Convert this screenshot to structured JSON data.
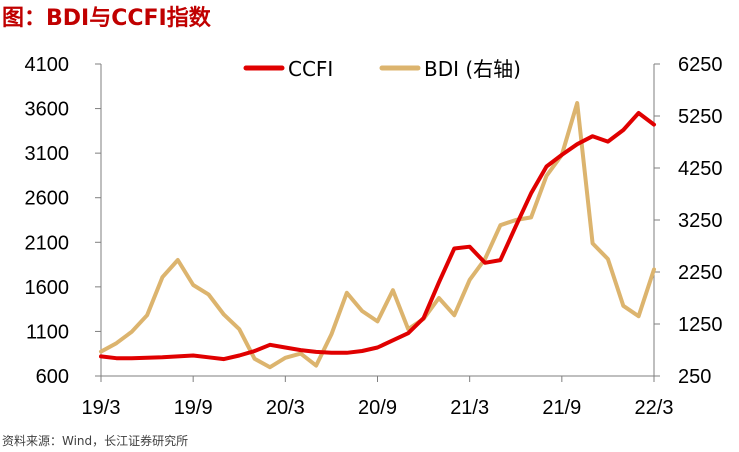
{
  "title": "图：BDI与CCFI指数",
  "source": "资料来源：Wind，长江证券研究所",
  "chart_data": {
    "type": "line",
    "x_tick_labels": [
      "19/3",
      "19/9",
      "20/3",
      "20/9",
      "21/3",
      "21/9",
      "22/3"
    ],
    "left_axis": {
      "ylim": [
        600,
        4100
      ],
      "ticks": [
        600,
        1100,
        1600,
        2100,
        2600,
        3100,
        3600,
        4100
      ]
    },
    "right_axis": {
      "ylim": [
        250,
        6250
      ],
      "ticks": [
        250,
        1250,
        2250,
        3250,
        4250,
        5250,
        6250
      ]
    },
    "legend_position": "top-center",
    "grid": false,
    "series": [
      {
        "name": "CCFI",
        "axis": "left",
        "color": "#e00000",
        "points": [
          [
            "19/3",
            820
          ],
          [
            "19/4",
            800
          ],
          [
            "19/5",
            800
          ],
          [
            "19/6",
            805
          ],
          [
            "19/7",
            810
          ],
          [
            "19/8",
            820
          ],
          [
            "19/9",
            830
          ],
          [
            "19/10",
            810
          ],
          [
            "19/11",
            790
          ],
          [
            "19/12",
            830
          ],
          [
            "20/1",
            880
          ],
          [
            "20/2",
            950
          ],
          [
            "20/3",
            920
          ],
          [
            "20/4",
            890
          ],
          [
            "20/5",
            870
          ],
          [
            "20/6",
            860
          ],
          [
            "20/7",
            860
          ],
          [
            "20/8",
            880
          ],
          [
            "20/9",
            920
          ],
          [
            "20/10",
            1000
          ],
          [
            "20/11",
            1080
          ],
          [
            "20/12",
            1250
          ],
          [
            "21/1",
            1650
          ],
          [
            "21/2",
            2030
          ],
          [
            "21/3",
            2050
          ],
          [
            "21/4",
            1870
          ],
          [
            "21/5",
            1900
          ],
          [
            "21/6",
            2280
          ],
          [
            "21/7",
            2650
          ],
          [
            "21/8",
            2950
          ],
          [
            "21/9",
            3080
          ],
          [
            "21/10",
            3200
          ],
          [
            "21/11",
            3290
          ],
          [
            "21/12",
            3230
          ],
          [
            "22/1",
            3360
          ],
          [
            "22/2",
            3550
          ],
          [
            "22/3",
            3420
          ]
        ]
      },
      {
        "name": "BDI (右轴)",
        "axis": "right",
        "color": "#dcb46e",
        "points": [
          [
            "19/3",
            720
          ],
          [
            "19/4",
            880
          ],
          [
            "19/5",
            1100
          ],
          [
            "19/6",
            1420
          ],
          [
            "19/7",
            2150
          ],
          [
            "19/8",
            2480
          ],
          [
            "19/9",
            2000
          ],
          [
            "19/10",
            1820
          ],
          [
            "19/11",
            1430
          ],
          [
            "19/12",
            1150
          ],
          [
            "20/1",
            580
          ],
          [
            "20/2",
            420
          ],
          [
            "20/3",
            600
          ],
          [
            "20/4",
            680
          ],
          [
            "20/5",
            450
          ],
          [
            "20/6",
            1050
          ],
          [
            "20/7",
            1850
          ],
          [
            "20/8",
            1500
          ],
          [
            "20/9",
            1300
          ],
          [
            "20/10",
            1900
          ],
          [
            "20/11",
            1150
          ],
          [
            "20/12",
            1350
          ],
          [
            "21/1",
            1750
          ],
          [
            "21/2",
            1420
          ],
          [
            "21/3",
            2100
          ],
          [
            "21/4",
            2500
          ],
          [
            "21/5",
            3150
          ],
          [
            "21/6",
            3250
          ],
          [
            "21/7",
            3300
          ],
          [
            "21/8",
            4100
          ],
          [
            "21/9",
            4500
          ],
          [
            "21/10",
            5500
          ],
          [
            "21/11",
            2800
          ],
          [
            "21/12",
            2500
          ],
          [
            "22/1",
            1600
          ],
          [
            "22/2",
            1400
          ],
          [
            "22/3",
            2300
          ]
        ]
      }
    ]
  }
}
